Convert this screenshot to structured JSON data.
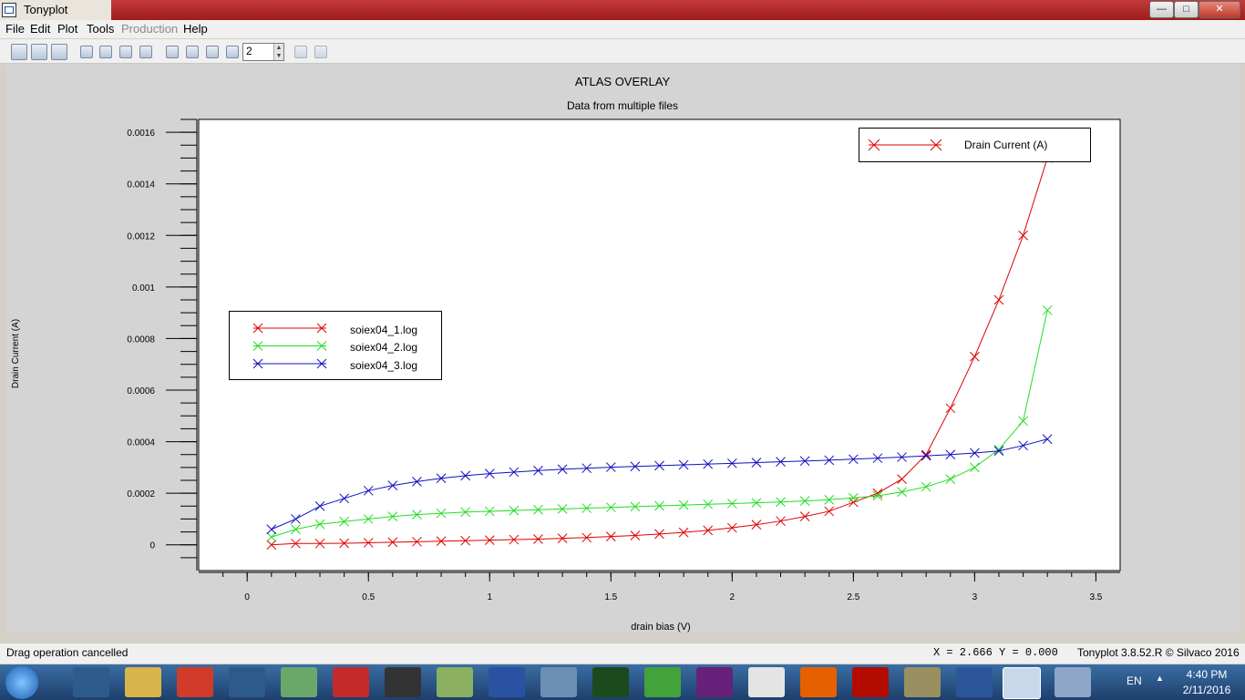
{
  "window": {
    "title": "Tonyplot",
    "controls": [
      "minimize",
      "maximize",
      "close"
    ]
  },
  "menu": [
    "File",
    "Edit",
    "Plot",
    "Tools",
    "Production",
    "Help"
  ],
  "menu_disabled": [
    "Production"
  ],
  "toolbar": {
    "zoom_value": "2"
  },
  "plot": {
    "title": "ATLAS OVERLAY",
    "subtitle": "Data from multiple files"
  },
  "chart_data": {
    "type": "line",
    "title": "ATLAS OVERLAY",
    "subtitle": "Data from multiple files",
    "xlabel": "drain bias (V)",
    "ylabel": "Drain Current (A)",
    "xlim": [
      -0.2,
      3.6
    ],
    "ylim": [
      -0.0001,
      0.00165
    ],
    "x_ticks": [
      "0",
      "0.5",
      "1",
      "1.5",
      "2",
      "2.5",
      "3",
      "3.5"
    ],
    "y_ticks": [
      "0",
      "0.0002",
      "0.0004",
      "0.0006",
      "0.0008",
      "0.001",
      "0.0012",
      "0.0014",
      "0.0016"
    ],
    "legend_files": [
      "soiex04_1.log",
      "soiex04_2.log",
      "soiex04_3.log"
    ],
    "legend_quantity": "Drain Current (A)",
    "series": [
      {
        "name": "soiex04_1.log",
        "color": "#e00000",
        "x": [
          0.1,
          0.2,
          0.3,
          0.4,
          0.5,
          0.6,
          0.7,
          0.8,
          0.9,
          1.0,
          1.1,
          1.2,
          1.3,
          1.4,
          1.5,
          1.6,
          1.7,
          1.8,
          1.9,
          2.0,
          2.1,
          2.2,
          2.3,
          2.4,
          2.5,
          2.6,
          2.7,
          2.8,
          2.9,
          3.0,
          3.1,
          3.2,
          3.3
        ],
        "y": [
          0.0,
          5e-06,
          5e-06,
          6e-06,
          8e-06,
          1e-05,
          1.2e-05,
          1.4e-05,
          1.6e-05,
          1.8e-05,
          2e-05,
          2.2e-05,
          2.5e-05,
          2.8e-05,
          3.2e-05,
          3.6e-05,
          4.2e-05,
          4.8e-05,
          5.6e-05,
          6.6e-05,
          7.8e-05,
          9.2e-05,
          0.00011,
          0.00013,
          0.000165,
          0.0002,
          0.000255,
          0.00035,
          0.00053,
          0.00073,
          0.00095,
          0.0012,
          0.0015
        ]
      },
      {
        "name": "soiex04_2.log",
        "color": "#22dd22",
        "x": [
          0.1,
          0.2,
          0.3,
          0.4,
          0.5,
          0.6,
          0.7,
          0.8,
          0.9,
          1.0,
          1.1,
          1.2,
          1.3,
          1.4,
          1.5,
          1.6,
          1.7,
          1.8,
          1.9,
          2.0,
          2.1,
          2.2,
          2.3,
          2.4,
          2.5,
          2.6,
          2.7,
          2.8,
          2.9,
          3.0,
          3.1,
          3.2,
          3.3
        ],
        "y": [
          3e-05,
          6e-05,
          8e-05,
          9e-05,
          0.0001,
          0.00011,
          0.000117,
          0.000122,
          0.000127,
          0.00013,
          0.000133,
          0.000136,
          0.000139,
          0.000142,
          0.000145,
          0.000148,
          0.000151,
          0.000154,
          0.000157,
          0.00016,
          0.000163,
          0.000166,
          0.00017,
          0.000175,
          0.000182,
          0.00019,
          0.000205,
          0.000225,
          0.000255,
          0.0003,
          0.00037,
          0.00048,
          0.00091
        ]
      },
      {
        "name": "soiex04_3.log",
        "color": "#1010c0",
        "x": [
          0.1,
          0.2,
          0.3,
          0.4,
          0.5,
          0.6,
          0.7,
          0.8,
          0.9,
          1.0,
          1.1,
          1.2,
          1.3,
          1.4,
          1.5,
          1.6,
          1.7,
          1.8,
          1.9,
          2.0,
          2.1,
          2.2,
          2.3,
          2.4,
          2.5,
          2.6,
          2.7,
          2.8,
          2.9,
          3.0,
          3.1,
          3.2,
          3.3
        ],
        "y": [
          6e-05,
          0.0001,
          0.00015,
          0.00018,
          0.00021,
          0.00023,
          0.000245,
          0.000258,
          0.000268,
          0.000276,
          0.000282,
          0.000288,
          0.000293,
          0.000297,
          0.000301,
          0.000304,
          0.000307,
          0.00031,
          0.000313,
          0.000316,
          0.000319,
          0.000322,
          0.000325,
          0.000328,
          0.000332,
          0.000336,
          0.00034,
          0.000345,
          0.00035,
          0.000356,
          0.000364,
          0.000385,
          0.00041
        ]
      }
    ]
  },
  "status": {
    "message": "Drag operation cancelled",
    "coords": "X = 2.666 Y = 0.000",
    "version": "Tonyplot 3.8.52.R © Silvaco 2016"
  },
  "taskbar": {
    "language": "EN",
    "time": "4:40 PM",
    "date": "2/11/2016"
  }
}
